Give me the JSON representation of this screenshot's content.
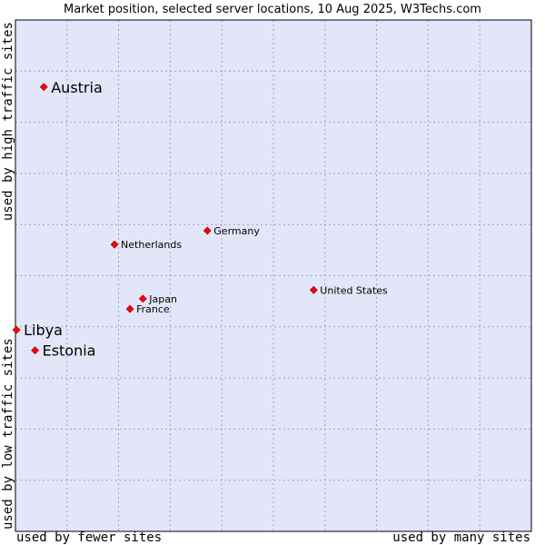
{
  "chart_data": {
    "type": "scatter",
    "title": "Market position, selected server locations, 10 Aug 2025, W3Techs.com",
    "xlabel_left": "used by fewer sites",
    "xlabel_right": "used by many sites",
    "ylabel_bottom": "used by low traffic sites",
    "ylabel_top": "used by high traffic sites",
    "xlim": [
      0,
      100
    ],
    "ylim": [
      0,
      100
    ],
    "grid": true,
    "point_color": "#ff0000",
    "plot_background": "#e3e6f8",
    "points": [
      {
        "label": "Austria",
        "x": 5.5,
        "y": 86.9,
        "emphasis": true
      },
      {
        "label": "Germany",
        "x": 37.2,
        "y": 58.8,
        "emphasis": false
      },
      {
        "label": "Netherlands",
        "x": 19.2,
        "y": 56.1,
        "emphasis": false
      },
      {
        "label": "United States",
        "x": 57.8,
        "y": 47.2,
        "emphasis": false
      },
      {
        "label": "Japan",
        "x": 24.7,
        "y": 45.5,
        "emphasis": false
      },
      {
        "label": "France",
        "x": 22.2,
        "y": 43.5,
        "emphasis": false
      },
      {
        "label": "Libya",
        "x": 0.2,
        "y": 39.4,
        "emphasis": true
      },
      {
        "label": "Estonia",
        "x": 3.8,
        "y": 35.4,
        "emphasis": true
      }
    ]
  }
}
